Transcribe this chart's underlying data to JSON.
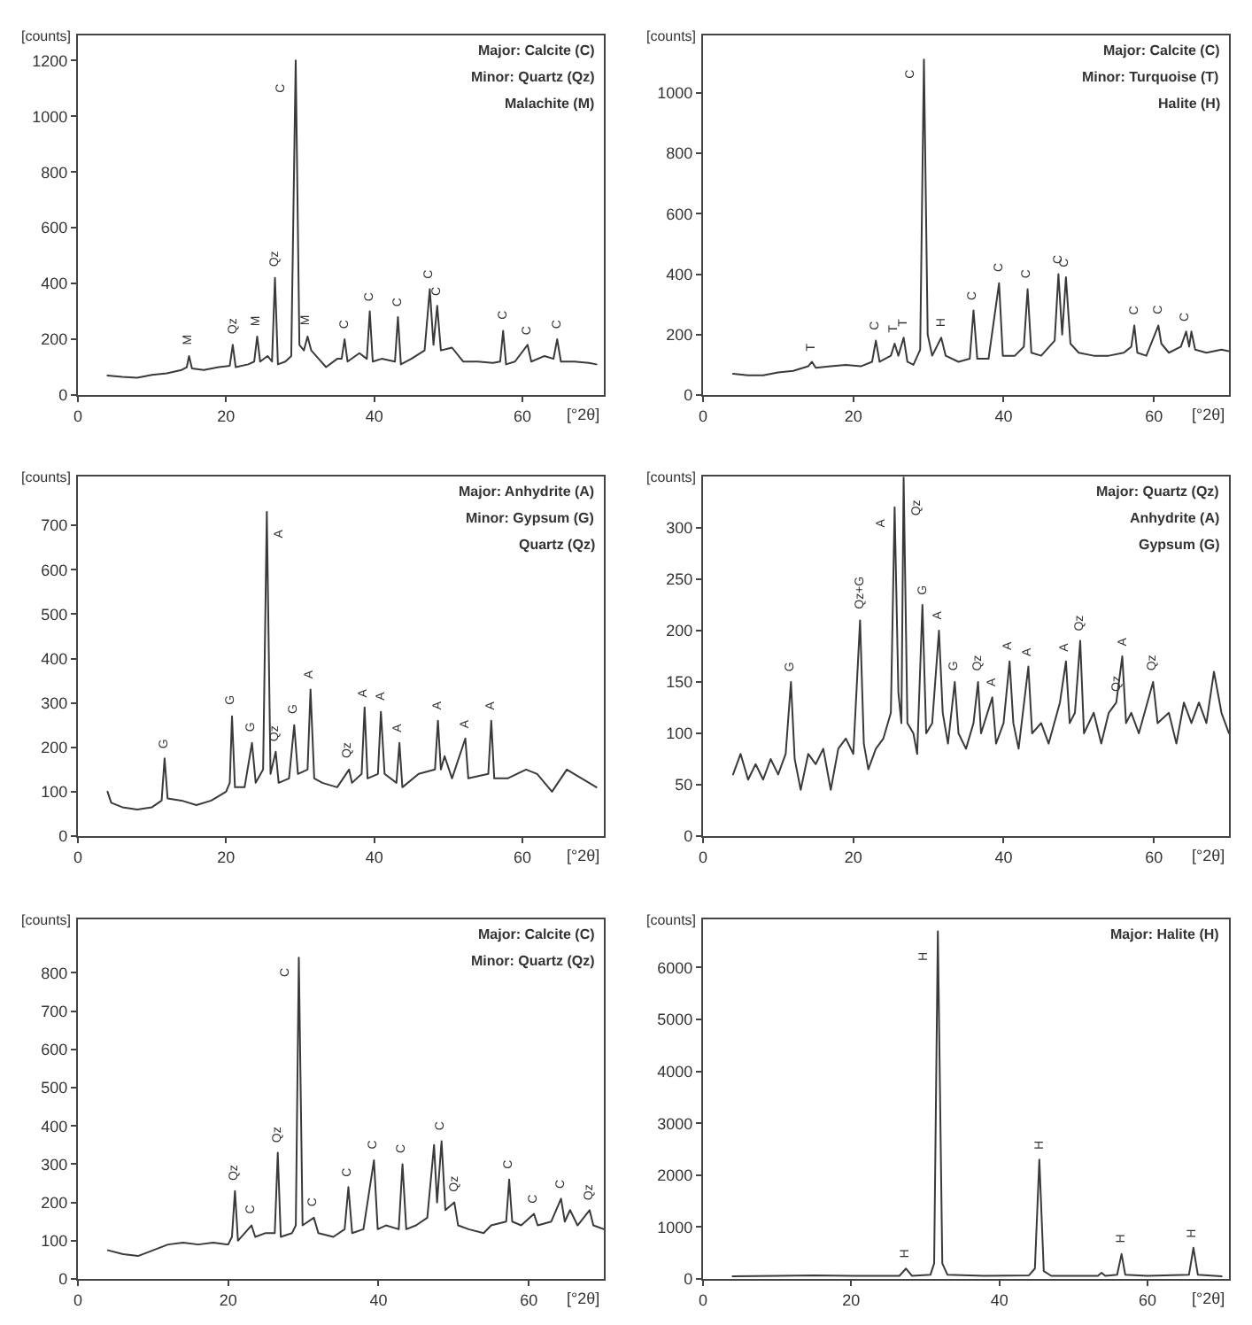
{
  "chart_data": [
    {
      "type": "line",
      "xlabel": "[°2θ]",
      "ylabel": "[counts]",
      "color": "#3a3a3a",
      "marker": "none",
      "line_style": "solid",
      "grid": false,
      "xlim": [
        0,
        71
      ],
      "ylim": [
        0,
        1290
      ],
      "xticks": [
        0,
        20,
        40,
        60
      ],
      "yticks": [
        0,
        200,
        400,
        600,
        800,
        1000,
        1200
      ],
      "x": [
        4,
        6,
        8,
        10,
        12,
        14,
        14.7,
        15,
        15.4,
        17,
        19,
        20.5,
        20.9,
        21.3,
        23,
        23.8,
        24.2,
        24.6,
        25.6,
        26.2,
        26.6,
        27,
        28,
        28.8,
        29.4,
        29.9,
        30.5,
        31,
        31.5,
        32.5,
        33.5,
        35,
        35.6,
        36,
        36.4,
        38,
        39,
        39.4,
        39.8,
        41,
        42.8,
        43.2,
        43.6,
        45,
        46.8,
        47.5,
        48,
        48.5,
        49,
        50.5,
        52,
        54,
        56,
        57,
        57.4,
        57.8,
        59,
        60.7,
        61.2,
        63,
        64.2,
        64.7,
        65.2,
        67,
        69,
        70
      ],
      "values": [
        70,
        65,
        62,
        72,
        78,
        90,
        100,
        140,
        95,
        90,
        100,
        105,
        180,
        100,
        110,
        120,
        210,
        120,
        140,
        120,
        420,
        110,
        120,
        140,
        1200,
        180,
        160,
        210,
        160,
        130,
        100,
        130,
        130,
        200,
        120,
        150,
        130,
        300,
        120,
        130,
        120,
        280,
        110,
        130,
        160,
        380,
        180,
        320,
        160,
        170,
        120,
        120,
        115,
        120,
        230,
        110,
        120,
        180,
        120,
        140,
        130,
        200,
        120,
        120,
        115,
        110
      ],
      "annotations": [
        "Major: Calcite (C)",
        "Minor: Quartz (Qz)",
        "Malachite (M)",
        {
          "text": "M",
          "x": 15,
          "y": 140
        },
        {
          "text": "Qz",
          "x": 20.9,
          "y": 180
        },
        {
          "text": "M",
          "x": 24.2,
          "y": 210
        },
        {
          "text": "Qz",
          "x": 26.6,
          "y": 420
        },
        {
          "text": "C",
          "x": 29.4,
          "y": 1100
        },
        {
          "text": "M",
          "x": 31,
          "y": 210
        },
        {
          "text": "C",
          "x": 36,
          "y": 200
        },
        {
          "text": "C",
          "x": 39.4,
          "y": 300
        },
        {
          "text": "C",
          "x": 43.2,
          "y": 280
        },
        {
          "text": "C",
          "x": 47.5,
          "y": 380
        },
        {
          "text": "C",
          "x": 48.5,
          "y": 320
        },
        {
          "text": "C",
          "x": 57.4,
          "y": 230
        },
        {
          "text": "C",
          "x": 60.7,
          "y": 180
        },
        {
          "text": "C",
          "x": 64.7,
          "y": 200
        }
      ]
    },
    {
      "type": "line",
      "xlabel": "[°2θ]",
      "ylabel": "[counts]",
      "color": "#3a3a3a",
      "marker": "none",
      "line_style": "solid",
      "grid": false,
      "xlim": [
        0,
        70
      ],
      "ylim": [
        0,
        1190
      ],
      "xticks": [
        0,
        20,
        40,
        60
      ],
      "yticks": [
        0,
        200,
        400,
        600,
        800,
        1000
      ],
      "x": [
        4,
        6,
        8,
        10,
        12,
        14,
        14.5,
        15,
        17,
        19,
        21,
        22.5,
        23,
        23.5,
        25,
        25.5,
        26,
        26.7,
        27.2,
        28,
        28.9,
        29.4,
        29.9,
        30.5,
        31.7,
        32.3,
        34,
        35.5,
        36,
        36.5,
        38,
        39.4,
        39.9,
        41.5,
        42.7,
        43.2,
        43.7,
        45,
        46.8,
        47.3,
        47.8,
        48.3,
        48.9,
        50,
        52,
        54,
        56,
        57,
        57.4,
        57.8,
        59,
        60.6,
        61,
        62,
        63.6,
        64.3,
        64.7,
        65,
        65.5,
        67,
        69,
        70
      ],
      "values": [
        70,
        65,
        65,
        75,
        80,
        95,
        110,
        90,
        95,
        100,
        95,
        110,
        180,
        110,
        130,
        170,
        130,
        190,
        110,
        100,
        150,
        1110,
        200,
        130,
        190,
        130,
        110,
        120,
        280,
        120,
        120,
        370,
        130,
        130,
        160,
        350,
        140,
        130,
        180,
        400,
        200,
        390,
        170,
        140,
        130,
        130,
        140,
        160,
        230,
        140,
        130,
        230,
        170,
        140,
        160,
        210,
        160,
        210,
        150,
        140,
        150,
        145
      ],
      "annotations": [
        "Major: Calcite (C)",
        "Minor: Turquoise (T)",
        "Halite (H)",
        {
          "text": "T",
          "x": 14.5,
          "y": 110
        },
        {
          "text": "C",
          "x": 23,
          "y": 180
        },
        {
          "text": "T",
          "x": 25.5,
          "y": 170
        },
        {
          "text": "T",
          "x": 26.7,
          "y": 190
        },
        {
          "text": "C",
          "x": 29.4,
          "y": 1060
        },
        {
          "text": "H",
          "x": 31.7,
          "y": 190
        },
        {
          "text": "C",
          "x": 36,
          "y": 280
        },
        {
          "text": "C",
          "x": 39.4,
          "y": 370
        },
        {
          "text": "C",
          "x": 43.2,
          "y": 350
        },
        {
          "text": "C",
          "x": 47.3,
          "y": 400
        },
        {
          "text": "C",
          "x": 48.3,
          "y": 390
        },
        {
          "text": "C",
          "x": 57.4,
          "y": 230
        },
        {
          "text": "C",
          "x": 60.6,
          "y": 230
        },
        {
          "text": "C",
          "x": 64.3,
          "y": 210
        }
      ]
    },
    {
      "type": "line",
      "xlabel": "[°2θ]",
      "ylabel": "[counts]",
      "color": "#3a3a3a",
      "marker": "none",
      "line_style": "solid",
      "grid": false,
      "xlim": [
        0,
        71
      ],
      "ylim": [
        0,
        810
      ],
      "xticks": [
        0,
        20,
        40,
        60
      ],
      "yticks": [
        0,
        100,
        200,
        300,
        400,
        500,
        600,
        700
      ],
      "x": [
        4,
        4.5,
        6,
        8,
        10,
        11.3,
        11.7,
        12.1,
        14,
        16,
        18,
        20,
        20.5,
        20.8,
        21.2,
        22.5,
        23.5,
        24,
        25,
        25.5,
        26,
        26.7,
        27.1,
        28.5,
        29.2,
        29.7,
        31,
        31.4,
        31.9,
        33,
        35,
        36.6,
        37,
        38.3,
        38.7,
        39.1,
        40.5,
        40.9,
        41.4,
        43,
        43.4,
        43.8,
        46,
        48.2,
        48.6,
        49,
        49.5,
        50.5,
        52.3,
        52.7,
        55.4,
        55.8,
        56.2,
        58,
        60.5,
        62,
        64,
        66,
        68,
        70
      ],
      "values": [
        100,
        75,
        65,
        60,
        65,
        80,
        175,
        85,
        80,
        70,
        80,
        100,
        120,
        270,
        110,
        110,
        210,
        120,
        150,
        730,
        140,
        190,
        120,
        130,
        250,
        140,
        150,
        330,
        130,
        120,
        110,
        150,
        120,
        140,
        290,
        130,
        140,
        280,
        140,
        120,
        210,
        110,
        140,
        150,
        260,
        150,
        180,
        130,
        220,
        130,
        140,
        260,
        130,
        130,
        150,
        140,
        100,
        150,
        130,
        110
      ],
      "annotations": [
        "Major: Anhydrite (A)",
        "Minor: Gypsum (G)",
        "Quartz (Qz)",
        {
          "text": "G",
          "x": 11.7,
          "y": 175
        },
        {
          "text": "G",
          "x": 20.8,
          "y": 270
        },
        {
          "text": "G",
          "x": 23.5,
          "y": 210
        },
        {
          "text": "A",
          "x": 25.5,
          "y": 680
        },
        {
          "text": "Qz",
          "x": 26.7,
          "y": 190
        },
        {
          "text": "G",
          "x": 29.2,
          "y": 250
        },
        {
          "text": "A",
          "x": 31.4,
          "y": 330
        },
        {
          "text": "Qz",
          "x": 36.6,
          "y": 150
        },
        {
          "text": "A",
          "x": 38.7,
          "y": 290
        },
        {
          "text": "A",
          "x": 40.9,
          "y": 280
        },
        {
          "text": "A",
          "x": 43.4,
          "y": 210
        },
        {
          "text": "A",
          "x": 48.6,
          "y": 260
        },
        {
          "text": "A",
          "x": 52.3,
          "y": 220
        },
        {
          "text": "A",
          "x": 55.8,
          "y": 260
        }
      ]
    },
    {
      "type": "line",
      "xlabel": "[°2θ]",
      "ylabel": "[counts]",
      "color": "#3a3a3a",
      "marker": "none",
      "line_style": "solid",
      "grid": false,
      "xlim": [
        0,
        70
      ],
      "ylim": [
        0,
        350
      ],
      "xticks": [
        0,
        20,
        40,
        60
      ],
      "yticks": [
        0,
        50,
        100,
        150,
        200,
        250,
        300
      ],
      "x": [
        4,
        5,
        6,
        7,
        8,
        9,
        10,
        11,
        11.7,
        12.2,
        13,
        14,
        15,
        16,
        17,
        18,
        19,
        20,
        20.9,
        21.4,
        22,
        23,
        24,
        25,
        25.5,
        26,
        26.4,
        26.7,
        27.2,
        28,
        28.5,
        29.2,
        29.7,
        30.5,
        31.4,
        31.9,
        32.6,
        33.5,
        34,
        35,
        36,
        36.6,
        37,
        38.5,
        39,
        40,
        40.8,
        41.3,
        42,
        43.3,
        43.8,
        45,
        46,
        47.5,
        48.3,
        48.8,
        49.5,
        50.2,
        50.7,
        52,
        53,
        54,
        55,
        55.8,
        56.3,
        57,
        58,
        59.9,
        60.5,
        62,
        63,
        64,
        65,
        66,
        67,
        68,
        69,
        70
      ],
      "values": [
        60,
        80,
        55,
        70,
        55,
        75,
        60,
        80,
        150,
        75,
        45,
        80,
        70,
        85,
        45,
        85,
        95,
        80,
        210,
        90,
        65,
        85,
        95,
        120,
        320,
        140,
        110,
        349,
        110,
        100,
        80,
        225,
        100,
        110,
        200,
        120,
        90,
        150,
        100,
        85,
        110,
        150,
        100,
        135,
        90,
        110,
        170,
        110,
        85,
        165,
        100,
        110,
        90,
        130,
        170,
        110,
        120,
        190,
        100,
        120,
        90,
        120,
        130,
        175,
        110,
        120,
        100,
        150,
        110,
        120,
        90,
        130,
        110,
        130,
        110,
        160,
        120,
        100
      ],
      "annotations": [
        "Major: Quartz (Qz)",
        "Anhydrite (A)",
        "Gypsum (G)",
        {
          "text": "G",
          "x": 11.7,
          "y": 150
        },
        {
          "text": "Qz+G",
          "x": 20.9,
          "y": 210
        },
        {
          "text": "A",
          "x": 25.5,
          "y": 305
        },
        {
          "text": "Qz",
          "x": 26.7,
          "y": 320
        },
        {
          "text": "G",
          "x": 29.2,
          "y": 225
        },
        {
          "text": "A",
          "x": 31.4,
          "y": 200
        },
        {
          "text": "G",
          "x": 33.5,
          "y": 150
        },
        {
          "text": "Qz",
          "x": 36.6,
          "y": 150
        },
        {
          "text": "A",
          "x": 38.5,
          "y": 135
        },
        {
          "text": "A",
          "x": 40.8,
          "y": 170
        },
        {
          "text": "A",
          "x": 43.3,
          "y": 165
        },
        {
          "text": "A",
          "x": 48.3,
          "y": 170
        },
        {
          "text": "Qz",
          "x": 50.2,
          "y": 190
        },
        {
          "text": "Qz",
          "x": 55,
          "y": 130
        },
        {
          "text": "A",
          "x": 55.8,
          "y": 175
        },
        {
          "text": "Qz",
          "x": 59.9,
          "y": 150
        }
      ]
    },
    {
      "type": "line",
      "xlabel": "[°2θ]",
      "ylabel": "[counts]",
      "color": "#3a3a3a",
      "marker": "none",
      "line_style": "solid",
      "grid": false,
      "xlim": [
        0,
        70
      ],
      "ylim": [
        0,
        940
      ],
      "xticks": [
        0,
        20,
        40,
        60
      ],
      "yticks": [
        0,
        100,
        200,
        300,
        400,
        500,
        600,
        700,
        800
      ],
      "x": [
        4,
        6,
        8,
        10,
        12,
        14,
        16,
        18,
        20,
        20.5,
        20.9,
        21.3,
        23.1,
        23.6,
        25,
        26.2,
        26.6,
        27,
        28.5,
        29,
        29.4,
        29.9,
        31.4,
        32,
        34,
        35.5,
        36,
        36.5,
        38,
        39.4,
        39.9,
        41,
        42.7,
        43.2,
        43.7,
        45,
        46.5,
        47.4,
        47.8,
        48.4,
        48.9,
        50.1,
        50.6,
        52,
        54,
        55,
        57,
        57.4,
        57.8,
        59,
        60.7,
        61.2,
        63,
        64.3,
        64.8,
        65.5,
        66.5,
        68.1,
        68.6,
        70
      ],
      "values": [
        75,
        65,
        60,
        75,
        90,
        95,
        90,
        95,
        90,
        110,
        230,
        100,
        140,
        110,
        120,
        120,
        330,
        110,
        120,
        140,
        840,
        140,
        160,
        120,
        110,
        130,
        240,
        120,
        130,
        310,
        130,
        140,
        130,
        300,
        130,
        140,
        160,
        350,
        200,
        360,
        180,
        200,
        140,
        130,
        120,
        140,
        150,
        260,
        150,
        140,
        170,
        140,
        150,
        210,
        150,
        180,
        140,
        180,
        140,
        130
      ],
      "annotations": [
        "Major: Calcite (C)",
        "Minor: Quartz (Qz)",
        {
          "text": "Qz",
          "x": 20.9,
          "y": 230
        },
        {
          "text": "C",
          "x": 23.1,
          "y": 140
        },
        {
          "text": "Qz",
          "x": 26.6,
          "y": 330
        },
        {
          "text": "C",
          "x": 29.4,
          "y": 800
        },
        {
          "text": "C",
          "x": 31.4,
          "y": 160
        },
        {
          "text": "C",
          "x": 36,
          "y": 240
        },
        {
          "text": "C",
          "x": 39.4,
          "y": 310
        },
        {
          "text": "C",
          "x": 43.2,
          "y": 300
        },
        {
          "text": "C",
          "x": 48.4,
          "y": 360
        },
        {
          "text": "Qz",
          "x": 50.1,
          "y": 200
        },
        {
          "text": "C",
          "x": 57.4,
          "y": 260
        },
        {
          "text": "C",
          "x": 60.7,
          "y": 170
        },
        {
          "text": "C",
          "x": 64.3,
          "y": 210
        },
        {
          "text": "Qz",
          "x": 68.1,
          "y": 180
        }
      ]
    },
    {
      "type": "line",
      "xlabel": "[°2θ]",
      "ylabel": "[counts]",
      "color": "#3a3a3a",
      "marker": "none",
      "line_style": "solid",
      "grid": false,
      "xlim": [
        0,
        71
      ],
      "ylim": [
        0,
        6930
      ],
      "xticks": [
        0,
        20,
        40,
        60
      ],
      "yticks": [
        0,
        1000,
        2000,
        3000,
        4000,
        5000,
        6000
      ],
      "x": [
        4,
        10,
        15,
        20,
        26.5,
        27.4,
        28.2,
        30.7,
        31.2,
        31.7,
        32.3,
        33,
        38,
        44,
        44.8,
        45.4,
        46,
        47,
        53.3,
        53.8,
        54.3,
        55.9,
        56.5,
        57,
        60,
        65.6,
        66.2,
        66.8,
        70
      ],
      "values": [
        50,
        60,
        70,
        60,
        60,
        200,
        60,
        80,
        300,
        6700,
        300,
        80,
        60,
        70,
        200,
        2300,
        150,
        60,
        60,
        120,
        60,
        80,
        480,
        80,
        60,
        80,
        600,
        80,
        50
      ],
      "annotations": [
        "Major: Halite (H)",
        {
          "text": "H",
          "x": 27.4,
          "y": 200
        },
        {
          "text": "H",
          "x": 31.7,
          "y": 6200
        },
        {
          "text": "H",
          "x": 45.4,
          "y": 2300
        },
        {
          "text": "H",
          "x": 56.5,
          "y": 480
        },
        {
          "text": "H",
          "x": 66.2,
          "y": 600
        }
      ]
    }
  ]
}
